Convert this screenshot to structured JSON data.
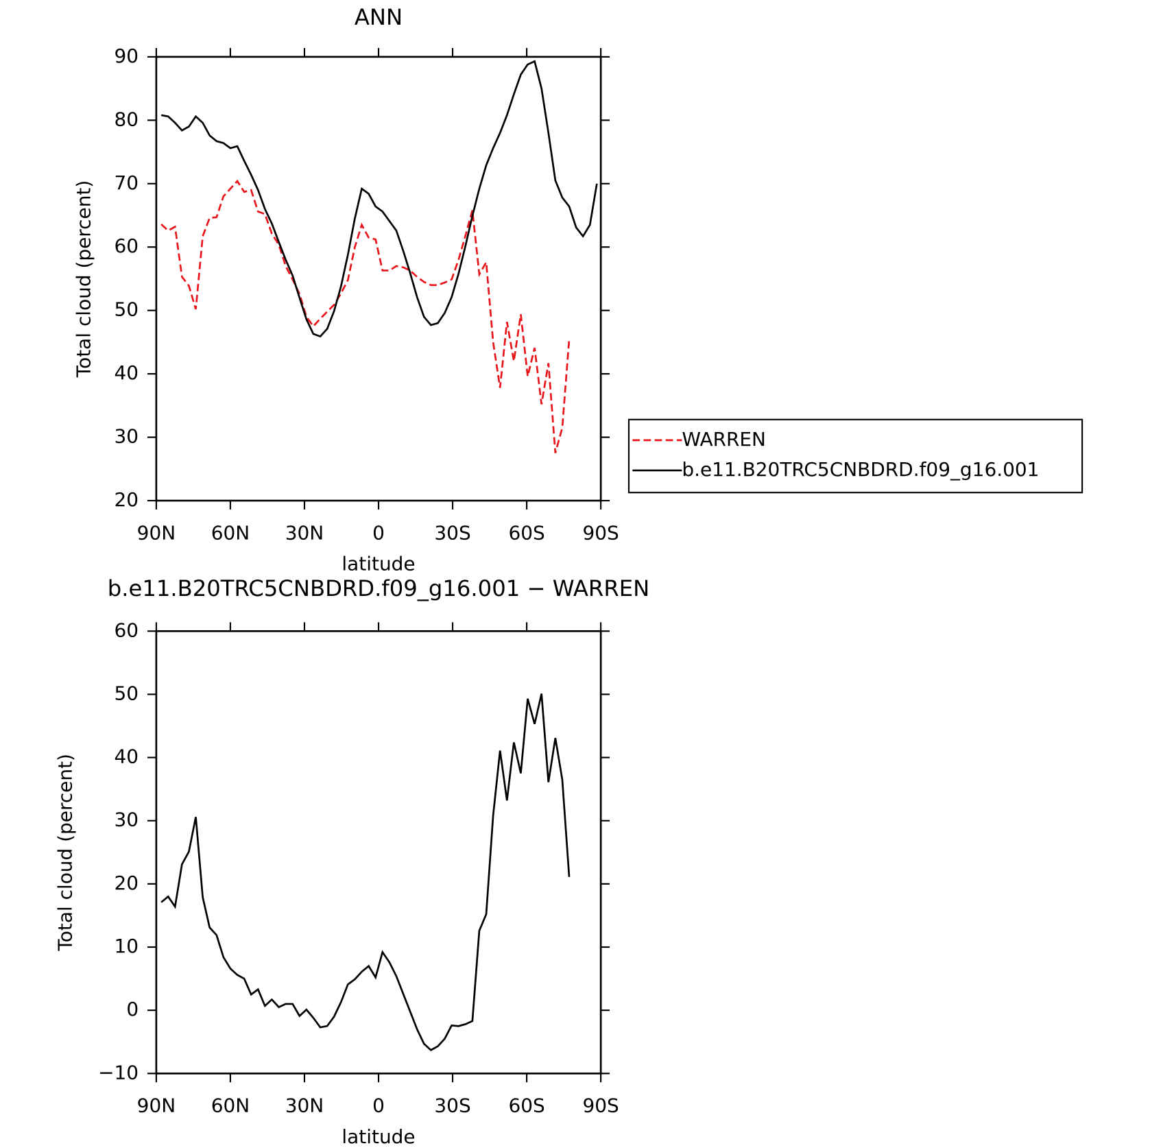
{
  "chart_data": [
    {
      "type": "line",
      "title": "ANN",
      "xlabel": "latitude",
      "ylabel": "Total cloud (percent)",
      "x": [
        88.0,
        85.2,
        82.4,
        79.6,
        76.8,
        74.0,
        71.2,
        68.4,
        65.6,
        62.8,
        60.0,
        57.2,
        54.4,
        51.6,
        48.8,
        46.0,
        43.2,
        40.4,
        37.6,
        34.8,
        32.0,
        29.2,
        26.4,
        23.6,
        20.8,
        18.0,
        15.2,
        12.4,
        9.6,
        6.8,
        4.0,
        1.2,
        -1.6,
        -4.4,
        -7.2,
        -10.0,
        -12.8,
        -15.6,
        -18.4,
        -21.2,
        -24.0,
        -26.8,
        -29.6,
        -32.4,
        -35.2,
        -38.0,
        -40.8,
        -43.6,
        -46.4,
        -49.2,
        -52.0,
        -54.8,
        -57.6,
        -60.4,
        -63.2,
        -66.0,
        -68.8,
        -71.6,
        -74.4,
        -77.2,
        -80.0,
        -82.8,
        -85.6,
        -88.4
      ],
      "series": [
        {
          "name": "WARREN",
          "color": "#e8141a",
          "linestyle": "dashed",
          "values": [
            63.6,
            62.6,
            63.2,
            55.3,
            53.9,
            50.2,
            61.7,
            64.6,
            64.7,
            68.0,
            69.2,
            70.4,
            68.7,
            69.0,
            65.6,
            65.2,
            62.1,
            60.4,
            57.0,
            54.9,
            52.6,
            49.0,
            47.5,
            48.7,
            49.8,
            50.9,
            52.7,
            54.8,
            60.0,
            63.5,
            61.5,
            61.2,
            56.3,
            56.3,
            57.0,
            56.8,
            56.3,
            55.3,
            54.5,
            54.0,
            54.0,
            54.4,
            54.9,
            58.0,
            61.8,
            65.8,
            55.7,
            57.6,
            45.0,
            37.8,
            48.2,
            42.0,
            49.4,
            39.6,
            44.1,
            35.2,
            41.7,
            27.5,
            31.5,
            45.5,
            null,
            null,
            null,
            null
          ]
        },
        {
          "name": "b.e11.B20TRC5CNBDRD.f09_g16.001",
          "color": "#000000",
          "linestyle": "solid",
          "values": [
            80.8,
            80.6,
            79.6,
            78.4,
            79.0,
            80.6,
            79.6,
            77.6,
            76.7,
            76.4,
            75.6,
            75.9,
            73.6,
            71.4,
            69.0,
            66.0,
            63.7,
            60.8,
            58.0,
            55.5,
            52.0,
            48.6,
            46.3,
            45.9,
            47.1,
            49.9,
            53.8,
            58.8,
            64.5,
            69.2,
            68.4,
            66.4,
            65.6,
            64.1,
            62.6,
            59.4,
            55.9,
            52.1,
            49.0,
            47.7,
            48.0,
            49.6,
            52.1,
            55.8,
            60.2,
            64.9,
            69.2,
            72.9,
            75.6,
            78.0,
            80.8,
            84.1,
            87.2,
            88.8,
            89.3,
            85.0,
            78.0,
            70.5,
            67.8,
            66.4,
            63.1,
            61.7,
            63.5,
            70.0
          ]
        }
      ],
      "xlim": [
        90,
        -90
      ],
      "ylim": [
        20,
        90
      ],
      "xticks": [
        {
          "value": 90,
          "label": "90N"
        },
        {
          "value": 60,
          "label": "60N"
        },
        {
          "value": 30,
          "label": "30N"
        },
        0,
        {
          "value": -30,
          "label": "30S"
        },
        {
          "value": -60,
          "label": "60S"
        },
        {
          "value": -90,
          "label": "90S"
        }
      ],
      "yticks": [
        20,
        30,
        40,
        50,
        60,
        70,
        80,
        90
      ],
      "legend": "right"
    },
    {
      "type": "line",
      "title": "b.e11.B20TRC5CNBDRD.f09_g16.001 − WARREN",
      "xlabel": "latitude",
      "ylabel": "Total cloud (percent)",
      "x": [
        88.0,
        85.2,
        82.4,
        79.6,
        76.8,
        74.0,
        71.2,
        68.4,
        65.6,
        62.8,
        60.0,
        57.2,
        54.4,
        51.6,
        48.8,
        46.0,
        43.2,
        40.4,
        37.6,
        34.8,
        32.0,
        29.2,
        26.4,
        23.6,
        20.8,
        18.0,
        15.2,
        12.4,
        9.6,
        6.8,
        4.0,
        1.2,
        -1.6,
        -4.4,
        -7.2,
        -10.0,
        -12.8,
        -15.6,
        -18.4,
        -21.2,
        -24.0,
        -26.8,
        -29.6,
        -32.4,
        -35.2,
        -38.0,
        -40.8,
        -43.6,
        -46.4,
        -49.2,
        -52.0,
        -54.8,
        -57.6,
        -60.4,
        -63.2,
        -66.0,
        -68.8,
        -71.6,
        -74.4,
        -77.2,
        -80.0,
        -82.8,
        -85.6,
        -88.4
      ],
      "series": [
        {
          "color": "#000000",
          "linestyle": "solid",
          "values": [
            17.1,
            18.0,
            16.4,
            23.1,
            25.1,
            30.6,
            17.9,
            13.1,
            11.9,
            8.4,
            6.6,
            5.6,
            5.0,
            2.5,
            3.3,
            0.7,
            1.7,
            0.5,
            1.0,
            1.0,
            -0.9,
            0.1,
            -1.2,
            -2.7,
            -2.5,
            -1.0,
            1.3,
            4.1,
            4.9,
            6.1,
            7.0,
            5.2,
            9.2,
            7.6,
            5.4,
            2.6,
            -0.2,
            -3.0,
            -5.3,
            -6.3,
            -5.7,
            -4.5,
            -2.4,
            -2.5,
            -2.2,
            -1.7,
            12.6,
            15.2,
            30.8,
            41.1,
            33.2,
            42.4,
            37.5,
            49.3,
            45.3,
            50.1,
            36.1,
            43.1,
            36.5,
            21.1,
            null,
            null,
            null,
            null
          ]
        }
      ],
      "xlim": [
        90,
        -90
      ],
      "ylim": [
        -10,
        60
      ],
      "xticks": [
        {
          "value": 90,
          "label": "90N"
        },
        {
          "value": 60,
          "label": "60N"
        },
        {
          "value": 30,
          "label": "30N"
        },
        0,
        {
          "value": -30,
          "label": "30S"
        },
        {
          "value": -60,
          "label": "60S"
        },
        {
          "value": -90,
          "label": "90S"
        }
      ],
      "yticks": [
        {
          "value": -10,
          "label": "−10"
        },
        0,
        10,
        20,
        30,
        40,
        50,
        60
      ]
    }
  ]
}
